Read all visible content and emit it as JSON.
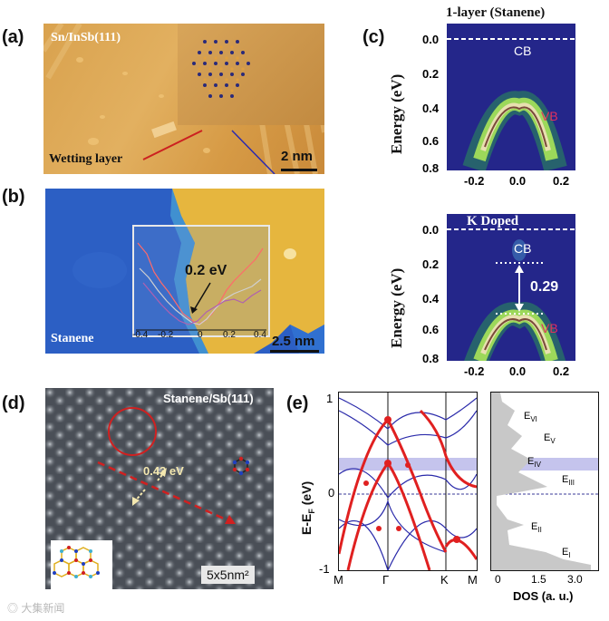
{
  "panel_labels": {
    "a": "(a)",
    "b": "(b)",
    "c": "(c)",
    "d": "(d)",
    "e": "(e)"
  },
  "panel_a": {
    "title": "Sn/InSb(111)",
    "wetting": "Wetting layer",
    "scale": "2 nm"
  },
  "panel_b": {
    "label": "Stanene",
    "scale": "2.5 nm",
    "gap": "0.2 eV",
    "ticks": [
      "-0.4",
      "-0.2",
      "0",
      "0.2",
      "0.4"
    ]
  },
  "panel_c": {
    "title": "1-layer (Stanene)",
    "doped": "K Doped",
    "ylabel": "Energy (eV)",
    "yticks": [
      "0.0",
      "0.2",
      "0.4",
      "0.6",
      "0.8"
    ],
    "xticks": [
      "-0.2",
      "0.0",
      "0.2"
    ],
    "cb": "CB",
    "vb": "VB",
    "gap": "0.29"
  },
  "panel_d": {
    "title": "Stanene/Sb(111)",
    "gap": "0.43 eV",
    "scale": "5x5nm²"
  },
  "panel_e": {
    "ylabel": "E-E",
    "ylabel_sub": "F",
    "ylabel_unit": " (eV)",
    "yticks": [
      "1",
      "0",
      "-1"
    ],
    "kpoints": [
      "M",
      "Γ",
      "K",
      "M"
    ],
    "dos_label": "DOS (a. u.)",
    "dos_ticks": [
      "0",
      "1.5",
      "3.0"
    ],
    "levels": [
      {
        "name": "E",
        "sub": "VI"
      },
      {
        "name": "E",
        "sub": "V"
      },
      {
        "name": "E",
        "sub": "IV"
      },
      {
        "name": "E",
        "sub": "III"
      },
      {
        "name": "E",
        "sub": "II"
      },
      {
        "name": "E",
        "sub": "I"
      }
    ]
  },
  "watermark": "大集新闻"
}
